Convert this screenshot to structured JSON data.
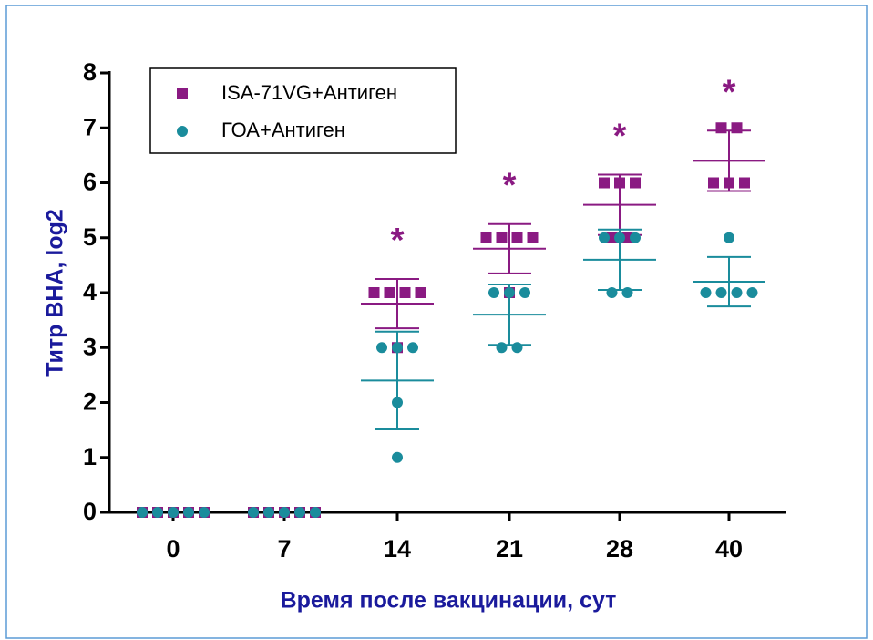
{
  "chart_data": {
    "type": "dot",
    "ylabel": "Титр ВНА, log2",
    "xlabel": "Время после вакцинации, сут",
    "categories": [
      "0",
      "7",
      "14",
      "21",
      "28",
      "40"
    ],
    "ylim": [
      0,
      8
    ],
    "yticks": [
      0,
      1,
      2,
      3,
      4,
      5,
      6,
      7,
      8
    ],
    "legend": "upper left",
    "series": [
      {
        "name": "ISA-71VG+Антиген",
        "color": "#8a1a82",
        "marker": "square",
        "values": [
          [
            0,
            0,
            0,
            0,
            0
          ],
          [
            0,
            0,
            0,
            0,
            0
          ],
          [
            4,
            4,
            4,
            4,
            3
          ],
          [
            5,
            5,
            5,
            5,
            4
          ],
          [
            6,
            6,
            6,
            5,
            5
          ],
          [
            7,
            7,
            6,
            6,
            6
          ]
        ],
        "mean": [
          0,
          0,
          3.8,
          4.8,
          5.6,
          6.4
        ],
        "sd": [
          0,
          0,
          0.45,
          0.45,
          0.55,
          0.55
        ]
      },
      {
        "name": "ГОА+Антиген",
        "color": "#1a8c9c",
        "marker": "circle",
        "values": [
          [
            0,
            0,
            0,
            0,
            0
          ],
          [
            0,
            0,
            0,
            0,
            0
          ],
          [
            3,
            3,
            3,
            2,
            1
          ],
          [
            4,
            4,
            4,
            3,
            3
          ],
          [
            5,
            5,
            5,
            4,
            4
          ],
          [
            5,
            4,
            4,
            4,
            4
          ]
        ],
        "mean": [
          0,
          0,
          2.4,
          3.6,
          4.6,
          4.2
        ],
        "sd": [
          0,
          0,
          0.89,
          0.55,
          0.55,
          0.45
        ]
      }
    ],
    "significance": [
      null,
      null,
      "*",
      "*",
      "*",
      "*"
    ]
  }
}
